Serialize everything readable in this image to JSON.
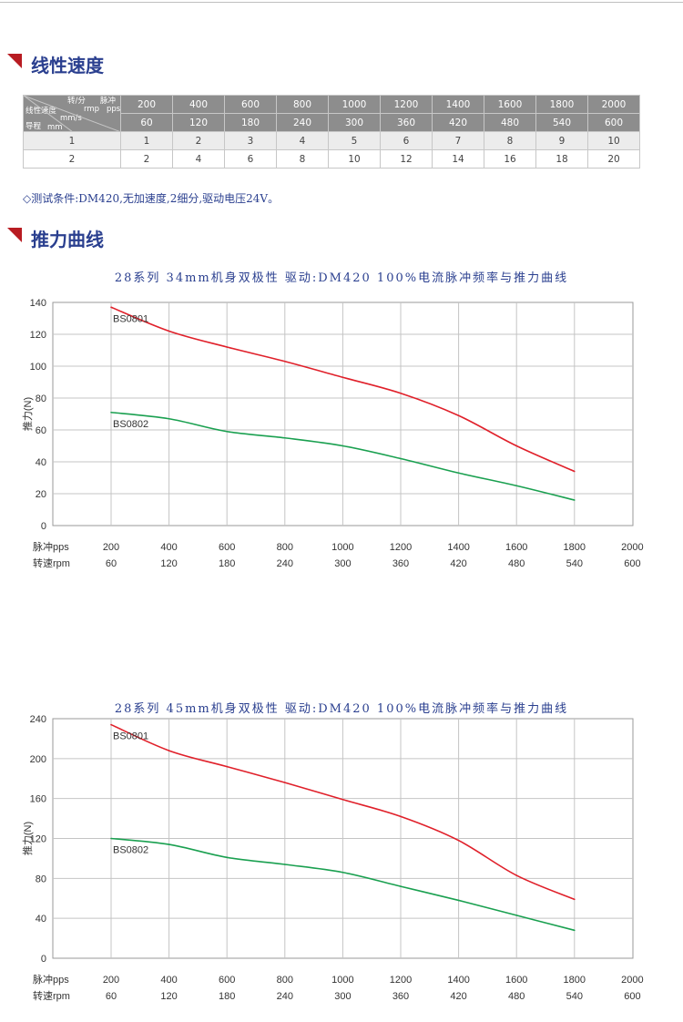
{
  "sections": {
    "speed_title": "线性速度",
    "thrust_title": "推力曲线"
  },
  "speed_table": {
    "corner": {
      "rpm_unit": "转/分",
      "rpm_sub": "rmp",
      "pulse_unit": "脉冲",
      "pulse_sub": "pps",
      "speed_label": "线性速度",
      "speed_unit": "mm/s",
      "lead_label": "导程",
      "lead_unit": "mm"
    },
    "pps": [
      "200",
      "400",
      "600",
      "800",
      "1000",
      "1200",
      "1400",
      "1600",
      "1800",
      "2000"
    ],
    "rpm": [
      "60",
      "120",
      "180",
      "240",
      "300",
      "360",
      "420",
      "480",
      "540",
      "600"
    ],
    "rows": [
      {
        "lead": "1",
        "speeds": [
          "1",
          "2",
          "3",
          "4",
          "5",
          "6",
          "7",
          "8",
          "9",
          "10"
        ]
      },
      {
        "lead": "2",
        "speeds": [
          "2",
          "4",
          "6",
          "8",
          "10",
          "12",
          "14",
          "16",
          "18",
          "20"
        ]
      }
    ]
  },
  "test_conditions": "◇测试条件:DM420,无加速度,2细分,驱动电压24V。",
  "chart_data": [
    {
      "type": "line",
      "title": "28系列 34mm机身双极性 驱动:DM420 100%电流脉冲频率与推力曲线",
      "ylabel": "推力(N)",
      "x_label_pps": "脉冲pps",
      "x_label_rpm": "转速rpm",
      "x": [
        200,
        400,
        600,
        800,
        1000,
        1200,
        1400,
        1600,
        1800
      ],
      "x_ticks": [
        "200",
        "400",
        "600",
        "800",
        "1000",
        "1200",
        "1400",
        "1600",
        "1800",
        "2000"
      ],
      "rpm_ticks": [
        "60",
        "120",
        "180",
        "240",
        "300",
        "360",
        "420",
        "480",
        "540",
        "600"
      ],
      "xlim": [
        200,
        2000
      ],
      "ylim": [
        0,
        140
      ],
      "y_ticks": [
        "0",
        "20",
        "40",
        "60",
        "80",
        "100",
        "120",
        "140"
      ],
      "grid": true,
      "series": [
        {
          "name": "BS0801",
          "color": "#e0202a",
          "values": [
            137,
            122,
            112,
            103,
            93,
            83,
            69,
            50,
            34
          ]
        },
        {
          "name": "BS0802",
          "color": "#1aa050",
          "values": [
            71,
            67,
            59,
            55,
            50,
            42,
            33,
            25,
            16
          ]
        }
      ]
    },
    {
      "type": "line",
      "title": "28系列 45mm机身双极性 驱动:DM420 100%电流脉冲频率与推力曲线",
      "ylabel": "推力(N)",
      "x_label_pps": "脉冲pps",
      "x_label_rpm": "转速rpm",
      "x": [
        200,
        400,
        600,
        800,
        1000,
        1200,
        1400,
        1600,
        1800
      ],
      "x_ticks": [
        "200",
        "400",
        "600",
        "800",
        "1000",
        "1200",
        "1400",
        "1600",
        "1800",
        "2000"
      ],
      "rpm_ticks": [
        "60",
        "120",
        "180",
        "240",
        "300",
        "360",
        "420",
        "480",
        "540",
        "600"
      ],
      "xlim": [
        200,
        2000
      ],
      "ylim": [
        0,
        240
      ],
      "y_ticks": [
        "0",
        "40",
        "80",
        "120",
        "160",
        "200",
        "240"
      ],
      "grid": true,
      "series": [
        {
          "name": "BS0801",
          "color": "#e0202a",
          "values": [
            234,
            208,
            192,
            176,
            159,
            142,
            118,
            83,
            59
          ]
        },
        {
          "name": "BS0802",
          "color": "#1aa050",
          "values": [
            120,
            114,
            101,
            94,
            86,
            72,
            58,
            43,
            28
          ]
        }
      ]
    }
  ]
}
